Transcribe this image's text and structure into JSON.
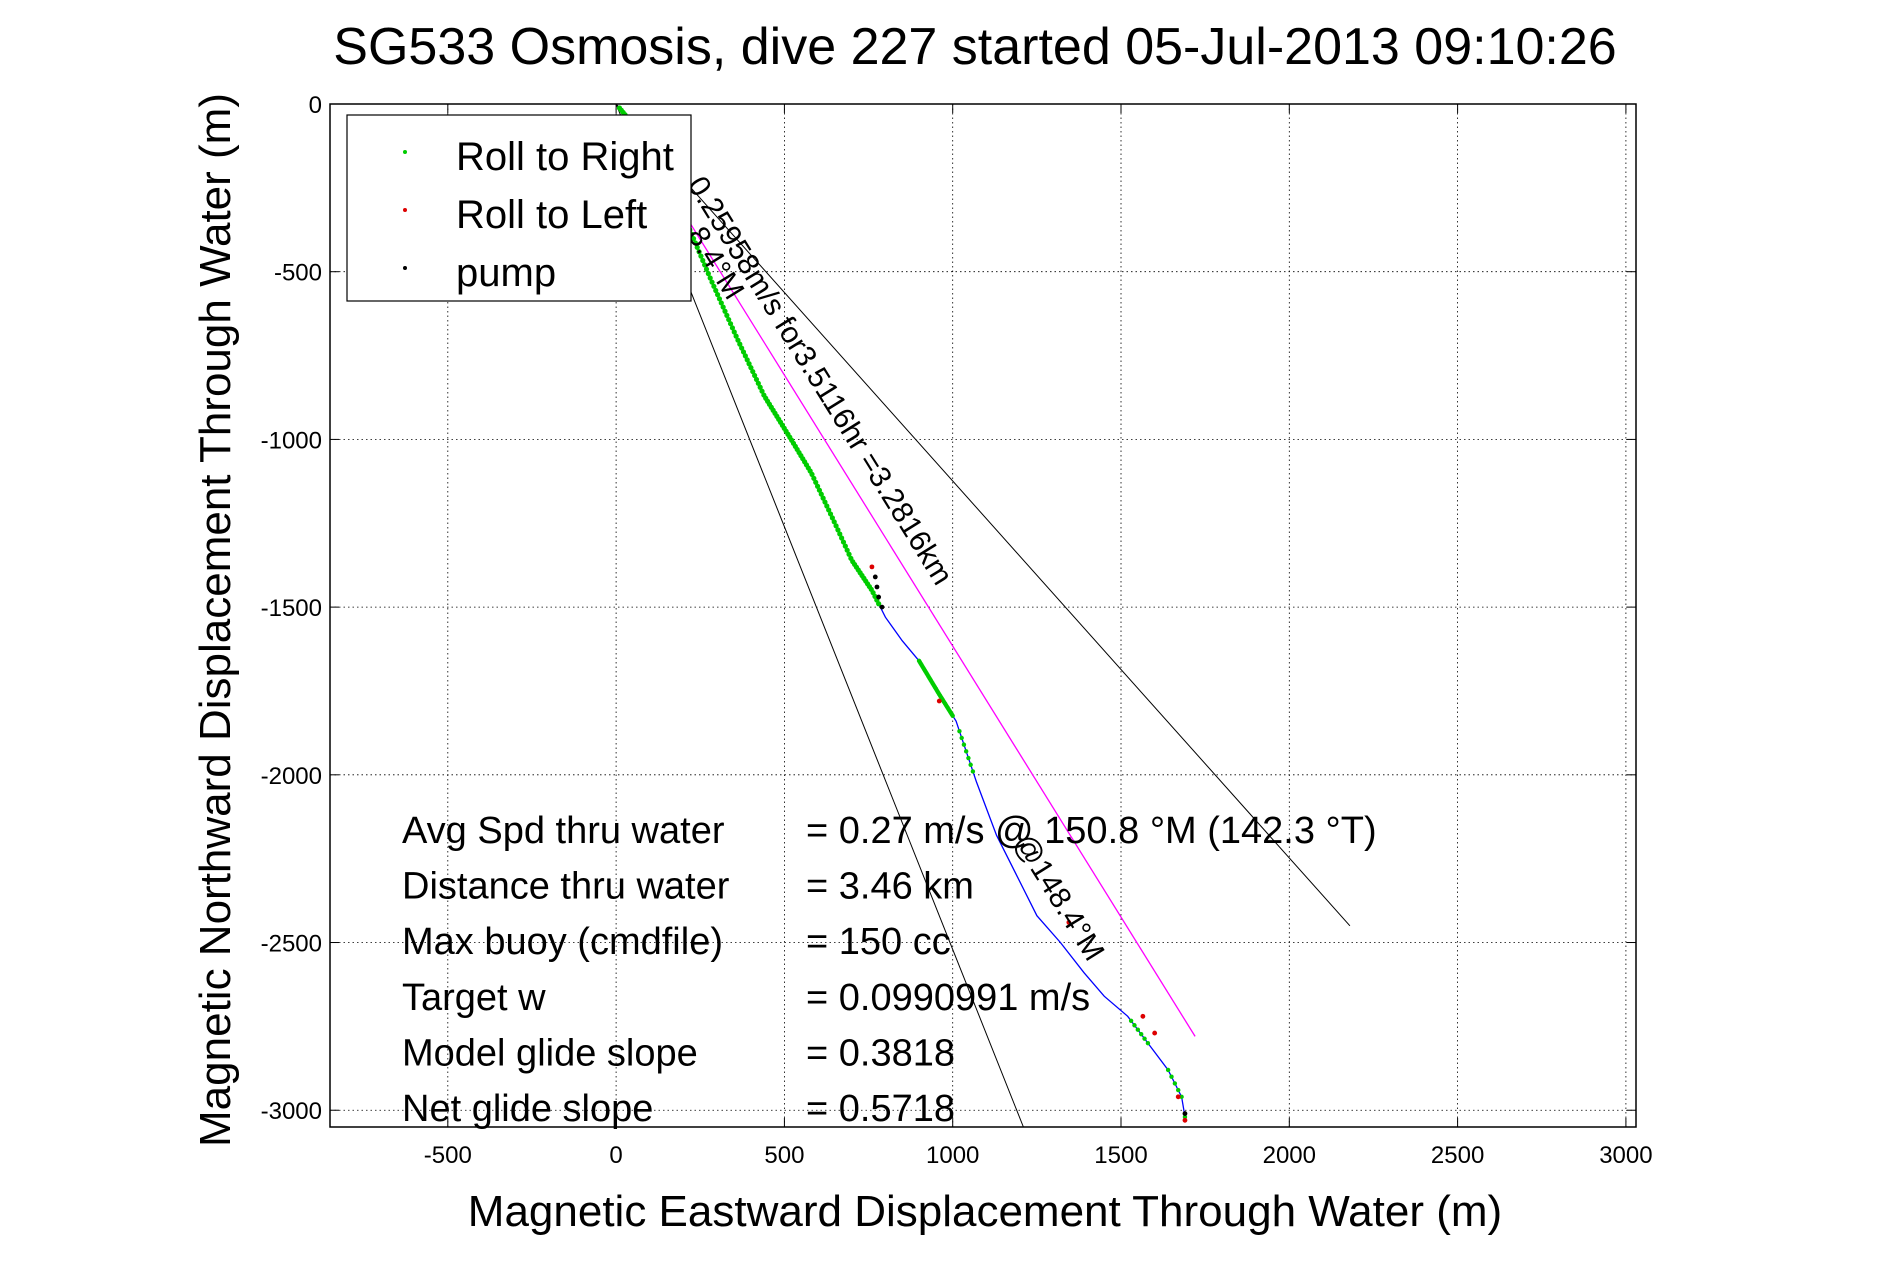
{
  "chart_data": {
    "type": "line",
    "title": "SG533 Osmosis, dive 227 started 05-Jul-2013 09:10:26",
    "xlabel": "Magnetic Eastward Displacement Through Water (m)",
    "ylabel": "Magnetic Northward Displacement Through Water (m)",
    "xlim": [
      -850,
      3030
    ],
    "ylim": [
      -3050,
      0
    ],
    "xticks": [
      -500,
      0,
      500,
      1000,
      1500,
      2000,
      2500,
      3000
    ],
    "yticks": [
      0,
      -500,
      -1000,
      -1500,
      -2000,
      -2500,
      -3000
    ],
    "grid": true,
    "legend_position": "top-left",
    "legend": [
      {
        "label": "Roll to Right",
        "color": "#00cc00"
      },
      {
        "label": "Roll to Left",
        "color": "#dd0000"
      },
      {
        "label": "pump",
        "color": "#000000"
      }
    ],
    "colors": {
      "track": "#0000ff",
      "roll_right": "#00cc00",
      "roll_left": "#dd0000",
      "pump": "#000000",
      "heading_line": "#ff00ff",
      "cone_lines": "#000000"
    },
    "series": [
      {
        "name": "track",
        "x": [
          0,
          50,
          120,
          200,
          280,
          360,
          440,
          520,
          580,
          650,
          700,
          760,
          800,
          850,
          900,
          960,
          1010,
          1070,
          1130,
          1190,
          1250,
          1320,
          1390,
          1450,
          1520,
          1580,
          1640,
          1680,
          1690
        ],
        "y": [
          0,
          -60,
          -180,
          -330,
          -520,
          -700,
          -870,
          -1000,
          -1100,
          -1250,
          -1360,
          -1450,
          -1530,
          -1600,
          -1660,
          -1760,
          -1840,
          -2020,
          -2180,
          -2300,
          -2420,
          -2500,
          -2590,
          -2660,
          -2720,
          -2800,
          -2880,
          -2960,
          -3020
        ]
      },
      {
        "name": "heading_line",
        "x": [
          0,
          1720
        ],
        "y": [
          0,
          -2780
        ]
      },
      {
        "name": "cone_left",
        "x": [
          0,
          1210
        ],
        "y": [
          0,
          -3050
        ]
      },
      {
        "name": "cone_right",
        "x": [
          0,
          2180
        ],
        "y": [
          0,
          -2450
        ]
      }
    ],
    "roll_right_x0": 10,
    "roll_right_x1": 780,
    "roll_right_samples": 140,
    "roll_right_segments": [
      [
        900,
        1000,
        40
      ],
      [
        1020,
        1060,
        6
      ],
      [
        1530,
        1580,
        5
      ],
      [
        1640,
        1690,
        5
      ]
    ],
    "roll_left_points": [
      [
        760,
        -1380
      ],
      [
        960,
        -1780
      ],
      [
        1345,
        -2440
      ],
      [
        1565,
        -2720
      ],
      [
        1600,
        -2770
      ],
      [
        1670,
        -2960
      ],
      [
        1690,
        -3030
      ]
    ],
    "pump_points": [
      [
        770,
        -1410
      ],
      [
        775,
        -1440
      ],
      [
        780,
        -1470
      ],
      [
        790,
        -1500
      ],
      [
        1690,
        -3010
      ]
    ],
    "annotations": {
      "speed_label": "0.25958m/s for3.5116hr =3.2816km",
      "heading_label": "@148.4°M",
      "heading_label_partial": "8.4°M"
    },
    "stats": [
      {
        "label": "Avg Spd thru water",
        "value": "=  0.27 m/s @ 150.8 °M (142.3 °T)"
      },
      {
        "label": "Distance thru water",
        "value": "=  3.46 km"
      },
      {
        "label": "Max buoy (cmdfile)",
        "value": "= 150 cc"
      },
      {
        "label": "Target w",
        "value": "= 0.0990991 m/s"
      },
      {
        "label": "Model glide slope",
        "value": "= 0.3818"
      },
      {
        "label": "Net glide slope",
        "value": "= 0.5718"
      }
    ]
  }
}
